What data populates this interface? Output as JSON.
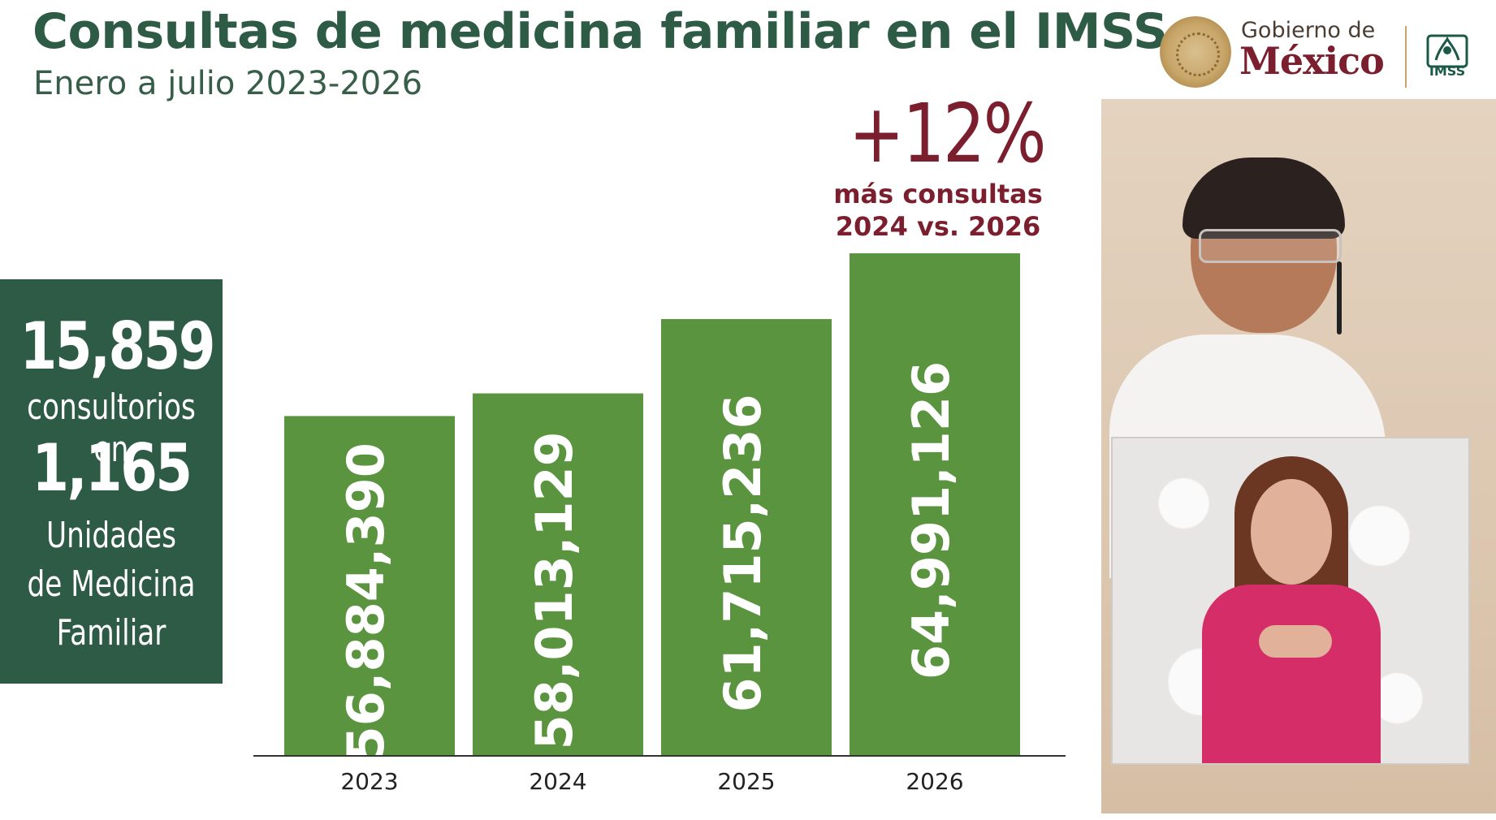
{
  "header": {
    "title": "Consultas de medicina familiar en el IMSS",
    "subtitle": "Enero a julio 2023-2026"
  },
  "logos": {
    "gobierno_line1": "Gobierno de",
    "gobierno_line2": "México",
    "imss": "IMSS"
  },
  "stats_panel": {
    "consultorios_value": "15,859",
    "consultorios_label": "consultorios en",
    "unidades_value": "1,165",
    "unidades_label_1": "Unidades",
    "unidades_label_2": "de Medicina",
    "unidades_label_3": "Familiar"
  },
  "highlight": {
    "value": "+12%",
    "line1": "más consultas",
    "line2": "2024 vs. 2026"
  },
  "chart_data": {
    "type": "bar",
    "categories": [
      "2023",
      "2024",
      "2025",
      "2026"
    ],
    "values": [
      56884390,
      58013129,
      61715236,
      64991126
    ],
    "value_labels": [
      "56,884,390",
      "58,013,129",
      "61,715,236",
      "64,991,126"
    ],
    "bar_color": "#5a943f",
    "axis_color": "#333333",
    "grid": false
  },
  "colors": {
    "title": "#2e5b45",
    "panel": "#2d5b45",
    "highlight": "#7b1f2e"
  }
}
